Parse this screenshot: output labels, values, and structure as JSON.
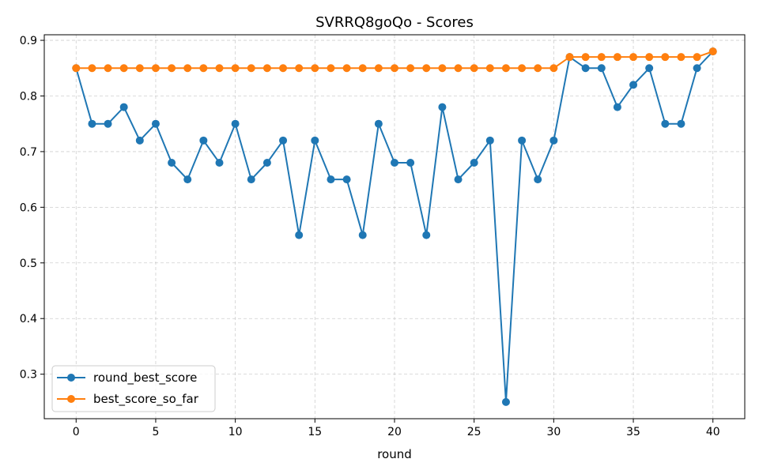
{
  "chart_data": {
    "type": "line",
    "title": "SVRRQ8goQo - Scores",
    "xlabel": "round",
    "ylabel": "",
    "xlim": [
      -2,
      42
    ],
    "ylim": [
      0.22,
      0.91
    ],
    "xticks": [
      0,
      5,
      10,
      15,
      20,
      25,
      30,
      35,
      40
    ],
    "yticks": [
      0.3,
      0.4,
      0.5,
      0.6,
      0.7,
      0.8,
      0.9
    ],
    "grid": true,
    "legend_position": "lower-left",
    "x": [
      0,
      1,
      2,
      3,
      4,
      5,
      6,
      7,
      8,
      9,
      10,
      11,
      12,
      13,
      14,
      15,
      16,
      17,
      18,
      19,
      20,
      21,
      22,
      23,
      24,
      25,
      26,
      27,
      28,
      29,
      30,
      31,
      32,
      33,
      34,
      35,
      36,
      37,
      38,
      39,
      40
    ],
    "series": [
      {
        "name": "round_best_score",
        "color": "#1f77b4",
        "values": [
          0.85,
          0.75,
          0.75,
          0.78,
          0.72,
          0.75,
          0.68,
          0.65,
          0.72,
          0.68,
          0.75,
          0.65,
          0.68,
          0.72,
          0.55,
          0.72,
          0.65,
          0.65,
          0.55,
          0.75,
          0.68,
          0.68,
          0.55,
          0.78,
          0.65,
          0.68,
          0.72,
          0.25,
          0.72,
          0.65,
          0.72,
          0.87,
          0.85,
          0.85,
          0.78,
          0.82,
          0.85,
          0.75,
          0.75,
          0.85,
          0.88
        ]
      },
      {
        "name": "best_score_so_far",
        "color": "#ff7f0e",
        "values": [
          0.85,
          0.85,
          0.85,
          0.85,
          0.85,
          0.85,
          0.85,
          0.85,
          0.85,
          0.85,
          0.85,
          0.85,
          0.85,
          0.85,
          0.85,
          0.85,
          0.85,
          0.85,
          0.85,
          0.85,
          0.85,
          0.85,
          0.85,
          0.85,
          0.85,
          0.85,
          0.85,
          0.85,
          0.85,
          0.85,
          0.85,
          0.87,
          0.87,
          0.87,
          0.87,
          0.87,
          0.87,
          0.87,
          0.87,
          0.87,
          0.88
        ]
      }
    ]
  }
}
